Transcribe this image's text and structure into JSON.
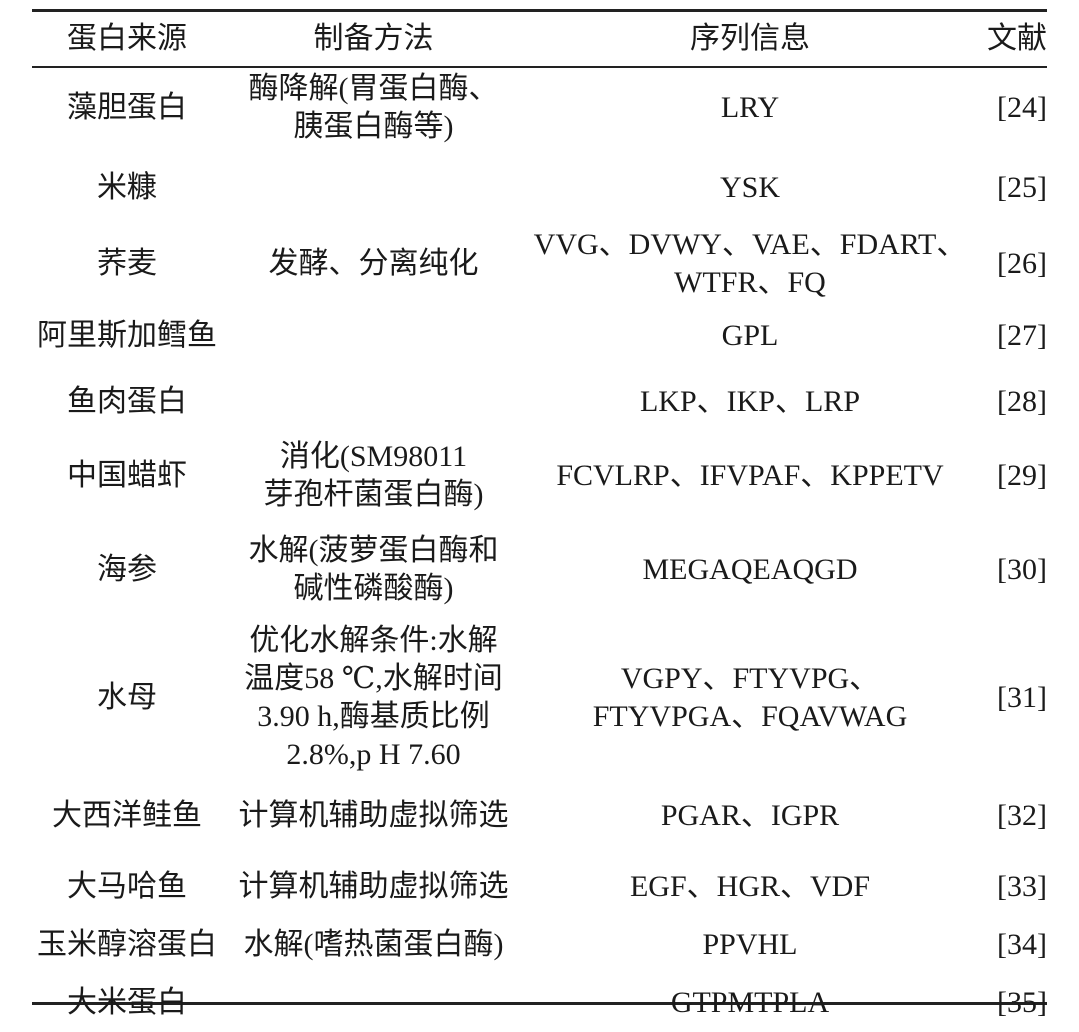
{
  "table": {
    "headers": [
      "蛋白来源",
      "制备方法",
      "序列信息",
      "文献"
    ],
    "rows": [
      {
        "source": "藻胆蛋白",
        "method": "酶降解(胃蛋白酶、\n胰蛋白酶等)",
        "sequence": "LRY",
        "ref": "[24]"
      },
      {
        "source": "米糠",
        "method": "",
        "sequence": "YSK",
        "ref": "[25]"
      },
      {
        "source": "荞麦",
        "method": "发酵、分离纯化",
        "sequence": "VVG、DVWY、VAE、FDART、\nWTFR、FQ",
        "ref": "[26]"
      },
      {
        "source": "阿里斯加鳕鱼",
        "method": "",
        "sequence": "GPL",
        "ref": "[27]"
      },
      {
        "source": "鱼肉蛋白",
        "method": "",
        "sequence": "LKP、IKP、LRP",
        "ref": "[28]"
      },
      {
        "source": "中国蜡虾",
        "method": "消化(SM98011\n芽孢杆菌蛋白酶)",
        "sequence": "FCVLRP、IFVPAF、KPPETV",
        "ref": "[29]"
      },
      {
        "source": "海参",
        "method": "水解(菠萝蛋白酶和\n碱性磷酸酶)",
        "sequence": "MEGAQEAQGD",
        "ref": "[30]"
      },
      {
        "source": "水母",
        "method": "优化水解条件:水解\n温度58 ℃,水解时间\n3.90 h,酶基质比例\n2.8%,p H 7.60",
        "sequence": "VGPY、FTYVPG、\nFTYVPGA、FQAVWAG",
        "ref": "[31]"
      },
      {
        "source": "大西洋鲑鱼",
        "method": "计算机辅助虚拟筛选",
        "sequence": "PGAR、IGPR",
        "ref": "[32]"
      },
      {
        "source": "大马哈鱼",
        "method": "计算机辅助虚拟筛选",
        "sequence": "EGF、HGR、VDF",
        "ref": "[33]"
      },
      {
        "source": "玉米醇溶蛋白",
        "method": "水解(嗜热菌蛋白酶)",
        "sequence": "PPVHL",
        "ref": "[34]"
      },
      {
        "source": "大米蛋白",
        "method": "",
        "sequence": "GTPMTPLA",
        "ref": "[35]"
      }
    ]
  }
}
